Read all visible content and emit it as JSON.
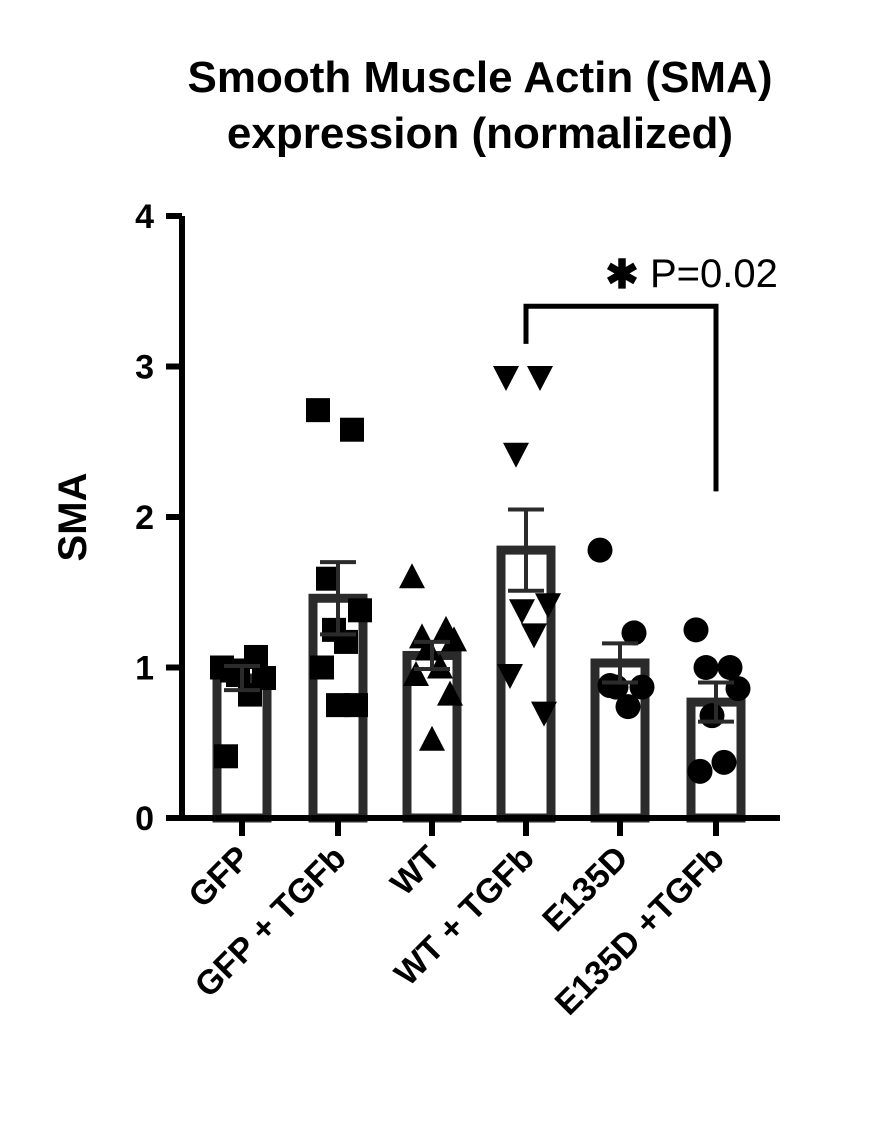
{
  "chart_data": {
    "type": "bar",
    "title": [
      "Smooth Muscle Actin (SMA)",
      "expression (normalized)"
    ],
    "ylabel": "SMA",
    "xlabel": "",
    "ylim": [
      0,
      4
    ],
    "yticks": [
      0,
      1,
      2,
      3,
      4
    ],
    "grid": false,
    "categories": [
      "GFP",
      "GFP + TGFb",
      "WT",
      "WT + TGFb",
      "E135D",
      "E135D +TGFb"
    ],
    "values": [
      0.93,
      1.46,
      1.08,
      1.78,
      1.03,
      0.77
    ],
    "errors": [
      0.08,
      0.24,
      0.09,
      0.27,
      0.13,
      0.13
    ],
    "markers": [
      "square",
      "square",
      "triangle-up",
      "triangle-down",
      "circle",
      "circle"
    ],
    "points": [
      [
        1.0,
        1.07,
        0.98,
        0.93,
        0.95,
        0.82,
        0.41
      ],
      [
        2.71,
        2.58,
        1.59,
        1.38,
        1.25,
        1.17,
        1.0,
        0.75,
        0.75
      ],
      [
        1.6,
        1.25,
        1.2,
        1.18,
        1.12,
        1.0,
        0.95,
        0.82,
        0.52
      ],
      [
        2.93,
        2.93,
        2.42,
        1.42,
        1.38,
        1.22,
        0.95,
        0.7
      ],
      [
        1.78,
        1.23,
        0.88,
        0.87,
        0.87,
        0.74
      ],
      [
        1.25,
        1.0,
        1.0,
        0.86,
        0.68,
        0.37,
        0.31
      ]
    ],
    "significance": {
      "from": "WT + TGFb",
      "to": "E135D +TGFb",
      "star": "✱",
      "label": "P=0.02",
      "bracket_y": 3.4
    }
  }
}
